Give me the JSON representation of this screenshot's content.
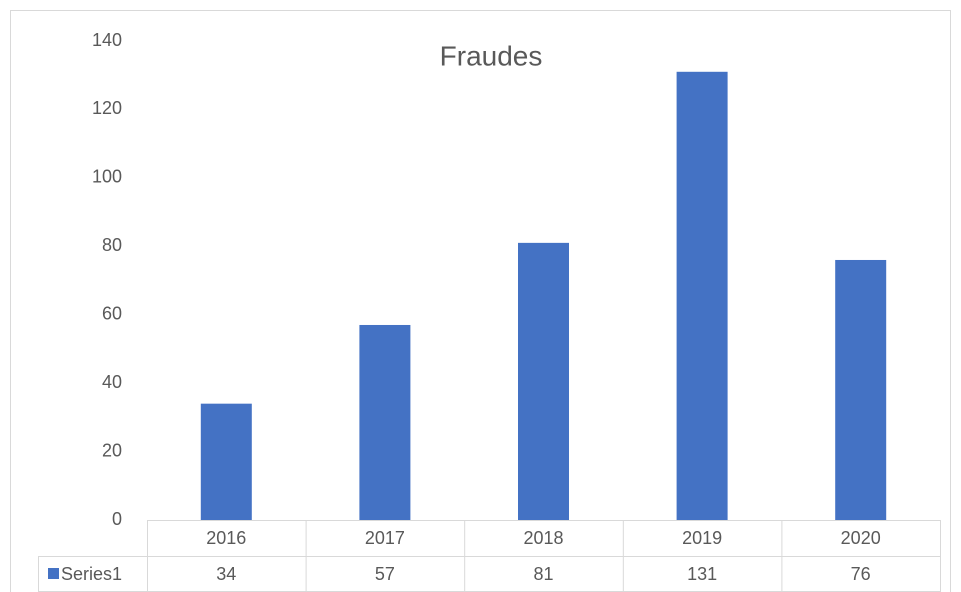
{
  "chart_data": {
    "type": "bar",
    "title": "Fraudes",
    "categories": [
      "2016",
      "2017",
      "2018",
      "2019",
      "2020"
    ],
    "series": [
      {
        "name": "Series1",
        "color": "#4472c4",
        "values": [
          34,
          57,
          81,
          131,
          76
        ]
      }
    ],
    "ylim": [
      0,
      140
    ],
    "yticks": [
      0,
      20,
      40,
      60,
      80,
      100,
      120,
      140
    ],
    "grid": false,
    "data_table": true
  }
}
